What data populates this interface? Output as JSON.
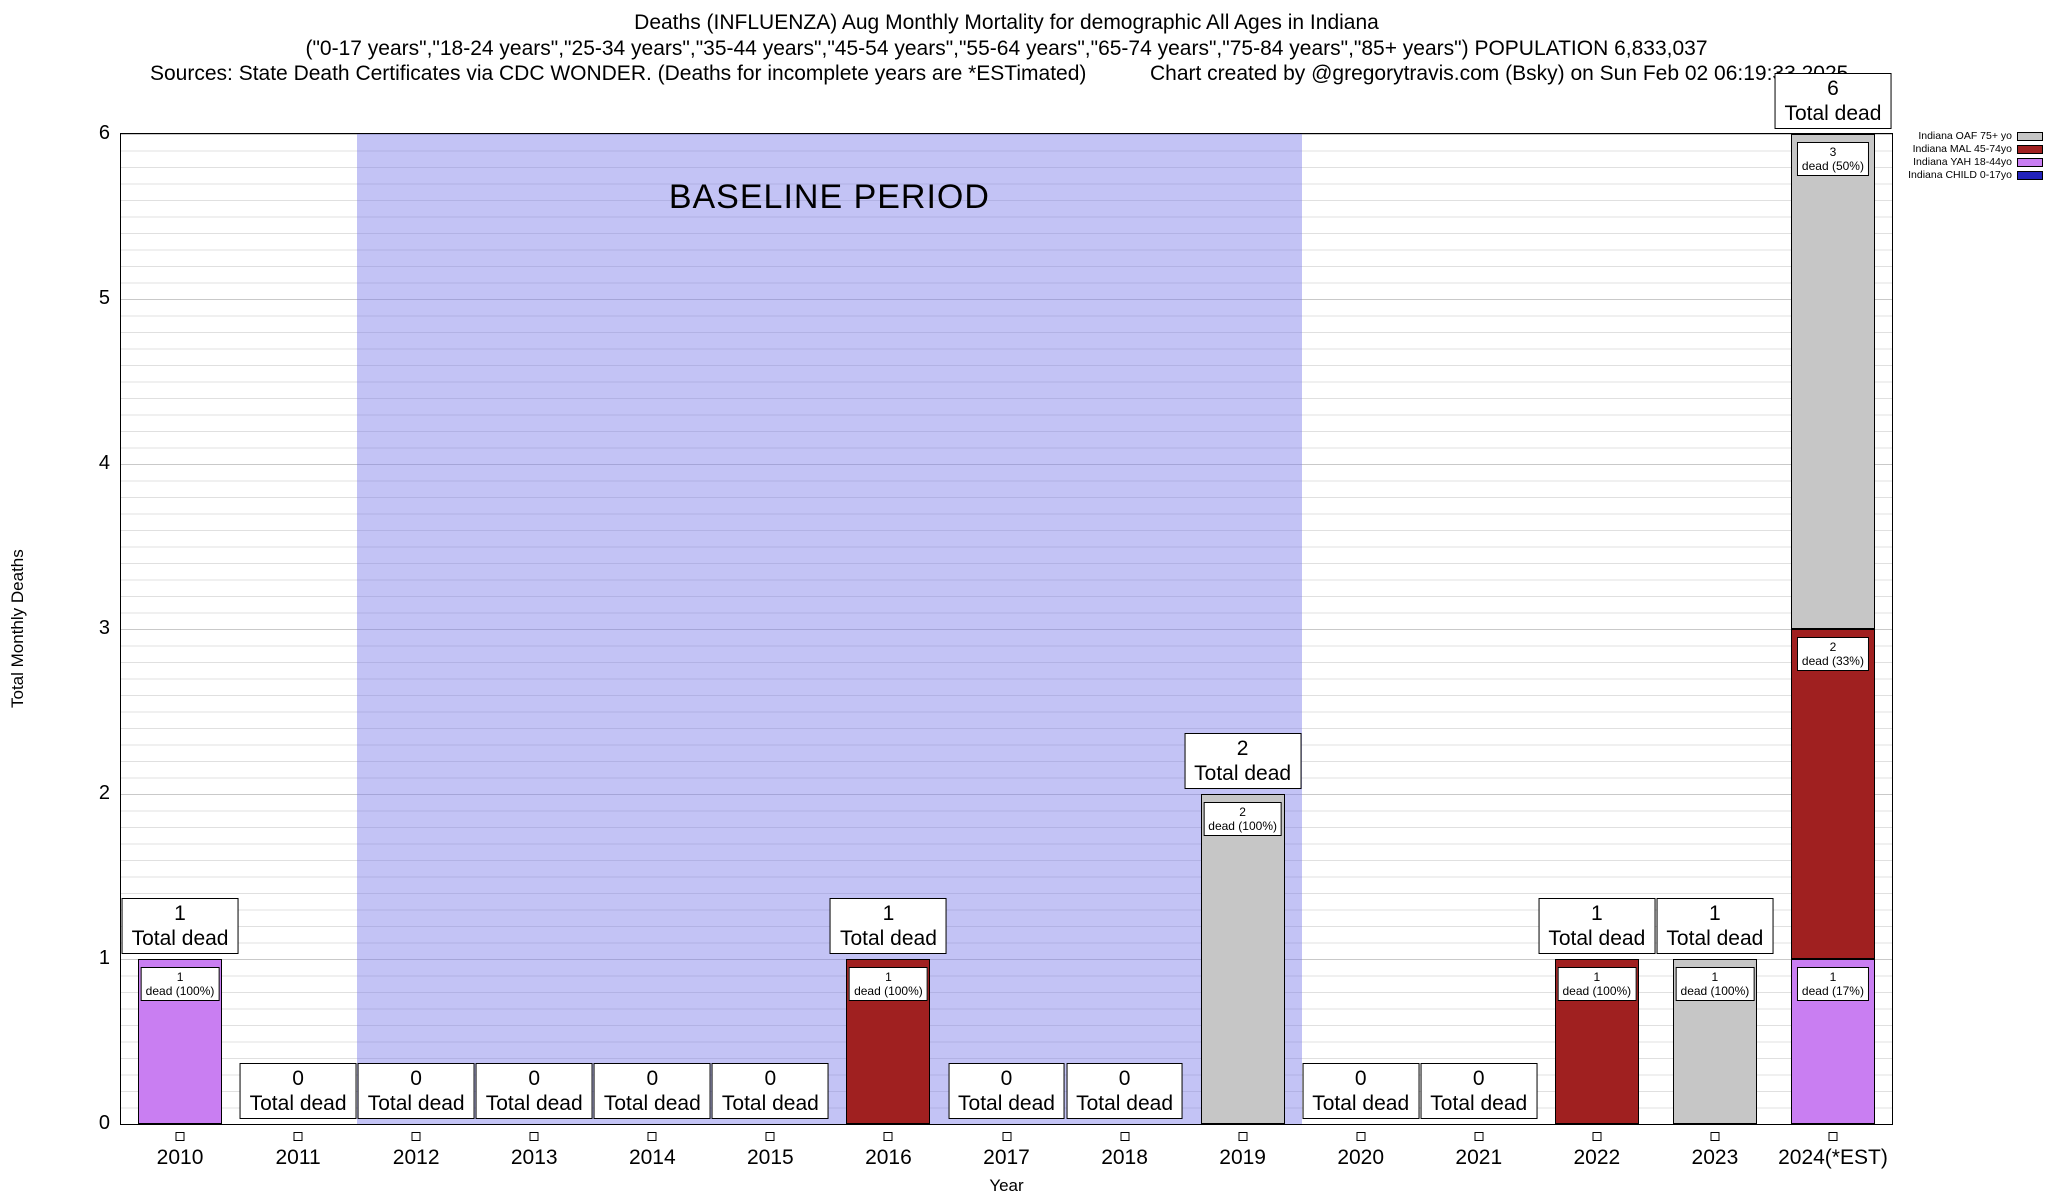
{
  "title": {
    "line1": "Deaths (INFLUENZA) Aug Monthly Mortality for demographic All Ages in Indiana",
    "line2": "(\"0-17 years\",\"18-24 years\",\"25-34 years\",\"35-44 years\",\"45-54 years\",\"55-64 years\",\"65-74 years\",\"75-84 years\",\"85+ years\") POPULATION 6,833,037",
    "sources": "Sources: State Death Certificates via CDC WONDER. (Deaths for incomplete years are *ESTimated)",
    "credit": "Chart created by @gregorytravis.com (Bsky) on Sun Feb 02 06:19:33 2025"
  },
  "axes": {
    "ylabel": "Total Monthly Deaths",
    "xlabel": "Year",
    "ylim": [
      0,
      6
    ],
    "yticks": [
      0,
      1,
      2,
      3,
      4,
      5,
      6
    ],
    "minor_grid_step": 0.1,
    "grid": true
  },
  "baseline": {
    "label": "BASELINE PERIOD",
    "start_year": "2012",
    "end_year": "2019",
    "color": "rgba(122,122,233,0.45)"
  },
  "legend": [
    {
      "key": "OAF",
      "label": "Indiana OAF 75+ yo",
      "color": "#c6c6c6"
    },
    {
      "key": "MAL",
      "label": "Indiana MAL 45-74yo",
      "color": "#a02020"
    },
    {
      "key": "YAH",
      "label": "Indiana YAH 18-44yo",
      "color": "#c97ef2"
    },
    {
      "key": "CHILD",
      "label": "Indiana CHILD 0-17yo",
      "color": "#2222bb"
    }
  ],
  "chart_data": {
    "type": "bar",
    "stacked": true,
    "stack_order_bottom_to_top": [
      "CHILD",
      "YAH",
      "MAL",
      "OAF"
    ],
    "categories": [
      "2010",
      "2011",
      "2012",
      "2013",
      "2014",
      "2015",
      "2016",
      "2017",
      "2018",
      "2019",
      "2020",
      "2021",
      "2022",
      "2023",
      "2024(*EST)"
    ],
    "series": [
      {
        "key": "OAF",
        "name": "Indiana OAF 75+ yo",
        "values": [
          0,
          0,
          0,
          0,
          0,
          0,
          0,
          0,
          0,
          2,
          0,
          0,
          0,
          1,
          3
        ]
      },
      {
        "key": "MAL",
        "name": "Indiana MAL 45-74yo",
        "values": [
          0,
          0,
          0,
          0,
          0,
          0,
          1,
          0,
          0,
          0,
          0,
          0,
          1,
          0,
          2
        ]
      },
      {
        "key": "YAH",
        "name": "Indiana YAH 18-44yo",
        "values": [
          1,
          0,
          0,
          0,
          0,
          0,
          0,
          0,
          0,
          0,
          0,
          0,
          0,
          0,
          1
        ]
      },
      {
        "key": "CHILD",
        "name": "Indiana CHILD 0-17yo",
        "values": [
          0,
          0,
          0,
          0,
          0,
          0,
          0,
          0,
          0,
          0,
          0,
          0,
          0,
          0,
          0
        ]
      }
    ],
    "totals": [
      1,
      0,
      0,
      0,
      0,
      0,
      1,
      0,
      0,
      2,
      0,
      0,
      1,
      1,
      6
    ],
    "total_label_suffix": "Total dead",
    "segment_labels": [
      {
        "year": "2010",
        "group": "YAH",
        "value": 1,
        "pct": "100%"
      },
      {
        "year": "2016",
        "group": "MAL",
        "value": 1,
        "pct": "100%"
      },
      {
        "year": "2019",
        "group": "OAF",
        "value": 2,
        "pct": "100%"
      },
      {
        "year": "2022",
        "group": "MAL",
        "value": 1,
        "pct": "100%"
      },
      {
        "year": "2023",
        "group": "OAF",
        "value": 1,
        "pct": "100%"
      },
      {
        "year": "2024(*EST)",
        "group": "YAH",
        "value": 1,
        "pct": "17%"
      },
      {
        "year": "2024(*EST)",
        "group": "MAL",
        "value": 2,
        "pct": "33%"
      },
      {
        "year": "2024(*EST)",
        "group": "OAF",
        "value": 3,
        "pct": "50%"
      }
    ]
  }
}
